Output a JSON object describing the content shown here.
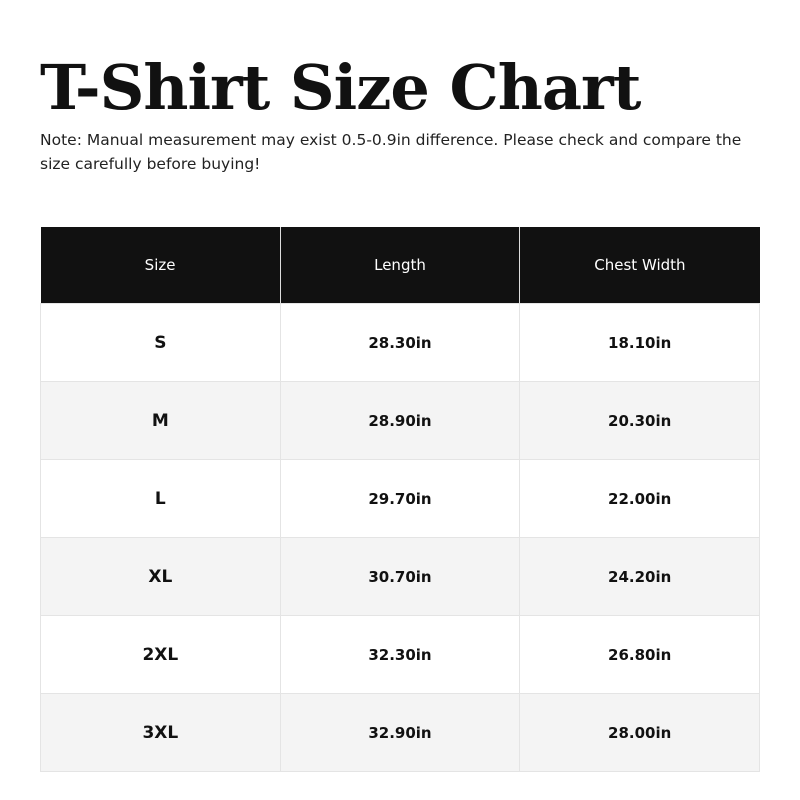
{
  "title": "T-Shirt Size Chart",
  "note": "Note: Manual measurement may exist 0.5-0.9in difference. Please check and compare the size carefully before buying!",
  "table": {
    "headers": [
      "Size",
      "Length",
      "Chest Width"
    ],
    "rows": [
      [
        "S",
        "28.30in",
        "18.10in"
      ],
      [
        "M",
        "28.90in",
        "20.30in"
      ],
      [
        "L",
        "29.70in",
        "22.00in"
      ],
      [
        "XL",
        "30.70in",
        "24.20in"
      ],
      [
        "2XL",
        "32.30in",
        "26.80in"
      ],
      [
        "3XL",
        "32.90in",
        "28.00in"
      ]
    ]
  },
  "colors": {
    "header_bg": "#111111",
    "alt_row_bg": "#f4f4f4"
  }
}
